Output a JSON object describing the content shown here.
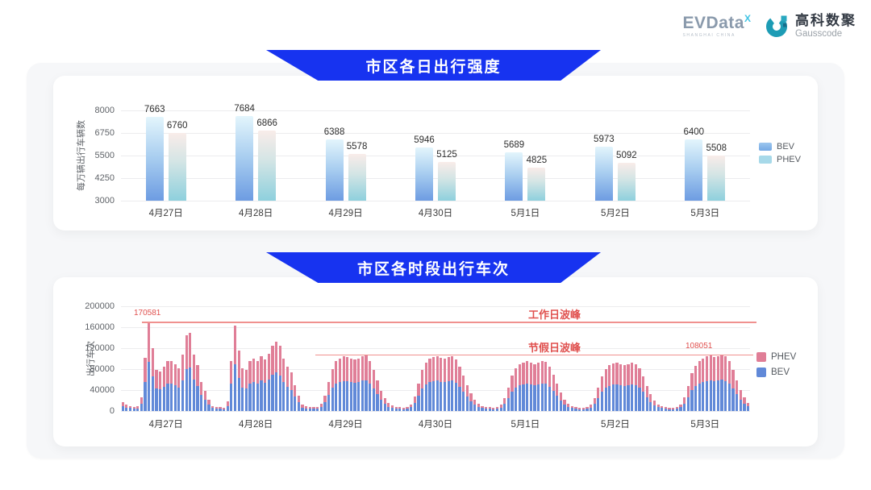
{
  "header": {
    "evdata_logo": {
      "text": "EVData",
      "sup": "X",
      "subtitle": "SHANGHAI CHINA"
    },
    "gausscode_logo": {
      "cn": "高科数聚",
      "en": "Gausscode"
    }
  },
  "colors": {
    "banner_blue": "#1733f0",
    "bev_gradient_top": "#e3f5fc",
    "bev_gradient_bottom": "#6d9ce2",
    "phev_gradient_top": "#f9ece9",
    "phev_gradient_bottom": "#8ed0dd",
    "bev_stack_blue": "#6189d8",
    "phev_stack_pink": "#e07e97",
    "annotation_red": "#e0514f",
    "peak_line_red": "#f0918f"
  },
  "chart_data": [
    {
      "type": "bar",
      "title": "市区各日出行强度",
      "ylabel": "每万辆出行车辆数",
      "ylim": [
        3000,
        8000
      ],
      "yticks": [
        8000,
        6750,
        5500,
        4250,
        3000
      ],
      "grid": true,
      "legend_position": "right",
      "categories": [
        "4月27日",
        "4月28日",
        "4月29日",
        "4月30日",
        "5月1日",
        "5月2日",
        "5月3日"
      ],
      "series": [
        {
          "name": "BEV",
          "values": [
            7663,
            7684,
            6388,
            5946,
            5689,
            5973,
            6400
          ]
        },
        {
          "name": "PHEV",
          "values": [
            6760,
            6866,
            5578,
            5125,
            4825,
            5092,
            5508
          ]
        }
      ]
    },
    {
      "type": "bar",
      "stacked": true,
      "title": "市区各时段出行车次",
      "ylabel": "出行车次",
      "ylim": [
        0,
        200000
      ],
      "yticks": [
        200000,
        160000,
        120000,
        80000,
        40000,
        0
      ],
      "grid": true,
      "legend_position": "right",
      "legend_order": [
        "PHEV",
        "BEV"
      ],
      "categories": [
        "4月27日",
        "4月28日",
        "4月29日",
        "4月30日",
        "5月1日",
        "5月2日",
        "5月3日"
      ],
      "hours_per_day": 24,
      "annotations": [
        {
          "id": "workday",
          "label": "工作日波峰",
          "value": 170581,
          "value_label": "170581"
        },
        {
          "id": "holiday",
          "label": "节假日波峰",
          "value": 108051,
          "value_label": "108051"
        }
      ],
      "days": [
        {
          "label": "4月27日",
          "bev": [
            9400,
            6600,
            5500,
            4400,
            5000,
            14300,
            55600,
            93800,
            66000,
            42900,
            41800,
            46200,
            52300,
            52800,
            49500,
            45100,
            58900,
            79800,
            82500,
            59400,
            48400,
            30800,
            20900,
            12100
          ],
          "phev": [
            7600,
            5400,
            4500,
            3600,
            4000,
            11700,
            45400,
            76781,
            54000,
            35100,
            34200,
            37800,
            42700,
            43200,
            40500,
            36900,
            48100,
            65200,
            67500,
            48600,
            39600,
            25200,
            17100,
            9900
          ]
        },
        {
          "label": "4月28日",
          "bev": [
            5500,
            4400,
            3900,
            3300,
            9900,
            52300,
            89700,
            63300,
            45100,
            42900,
            52300,
            55000,
            52800,
            57800,
            53900,
            60500,
            68800,
            73200,
            68200,
            55000,
            46800,
            40700,
            27500,
            16500
          ],
          "phev": [
            4500,
            3600,
            3100,
            2700,
            8100,
            42700,
            73300,
            51700,
            36900,
            35100,
            42700,
            45000,
            43200,
            47200,
            44100,
            49500,
            56200,
            59800,
            55800,
            45000,
            38200,
            33300,
            22500,
            13500
          ]
        },
        {
          "label": "4月29日",
          "bev": [
            6600,
            5000,
            4400,
            3900,
            4400,
            7700,
            16500,
            30300,
            44000,
            52300,
            55000,
            57200,
            56700,
            55000,
            53900,
            55000,
            57800,
            58900,
            52300,
            42900,
            31900,
            20900,
            13200,
            8300
          ],
          "phev": [
            5400,
            4000,
            3600,
            3100,
            3600,
            6300,
            13500,
            24700,
            36000,
            42700,
            45000,
            46800,
            46300,
            45000,
            44100,
            45000,
            47200,
            48100,
            42700,
            35100,
            26100,
            17100,
            10800,
            6700
          ]
        },
        {
          "label": "4月30日",
          "bev": [
            6100,
            4400,
            3900,
            3300,
            3900,
            7200,
            15400,
            28600,
            42900,
            50600,
            55000,
            56700,
            57800,
            56100,
            55000,
            56700,
            57800,
            53900,
            46800,
            37400,
            27500,
            18700,
            12100,
            7700
          ],
          "phev": [
            4900,
            3600,
            3100,
            2700,
            3100,
            5800,
            12600,
            23400,
            35100,
            41400,
            45000,
            46300,
            47200,
            45900,
            45000,
            46300,
            47200,
            44100,
            38200,
            30600,
            22500,
            15300,
            9900,
            6300
          ]
        },
        {
          "label": "5月1日",
          "bev": [
            5500,
            4400,
            3900,
            3300,
            3900,
            6600,
            13800,
            24800,
            37400,
            45100,
            49500,
            51200,
            52300,
            50600,
            49500,
            51200,
            52300,
            51700,
            46800,
            38500,
            28600,
            19800,
            12100,
            7700
          ],
          "phev": [
            4500,
            3600,
            3100,
            2700,
            3100,
            5400,
            11200,
            20200,
            30600,
            36900,
            40500,
            41800,
            42700,
            41400,
            40500,
            41800,
            42700,
            42300,
            38200,
            31500,
            23400,
            16200,
            9900,
            6300
          ]
        },
        {
          "label": "5月2日",
          "bev": [
            5500,
            3900,
            3300,
            3300,
            3900,
            6600,
            13200,
            24200,
            36300,
            44000,
            48400,
            50100,
            50600,
            49500,
            48400,
            49500,
            50600,
            49500,
            45100,
            36300,
            26400,
            17600,
            11000,
            7200
          ],
          "phev": [
            4500,
            3100,
            2700,
            2700,
            3100,
            5400,
            10800,
            19800,
            29700,
            36000,
            39600,
            40900,
            41400,
            40500,
            39600,
            40500,
            41400,
            40500,
            36900,
            29700,
            21600,
            14400,
            9000,
            5800
          ]
        },
        {
          "label": "5月3日",
          "bev": [
            5500,
            3900,
            3300,
            3300,
            3900,
            7200,
            14300,
            26400,
            39600,
            47300,
            52300,
            55000,
            57200,
            58300,
            56700,
            57800,
            59400,
            57200,
            52300,
            42900,
            31900,
            22000,
            14300,
            8800
          ],
          "phev": [
            4500,
            3100,
            2700,
            2700,
            3100,
            5800,
            11700,
            21600,
            32400,
            38700,
            42700,
            45000,
            46800,
            47700,
            46300,
            47200,
            48651,
            46800,
            42700,
            35100,
            26100,
            18000,
            11700,
            7200
          ]
        }
      ]
    }
  ]
}
